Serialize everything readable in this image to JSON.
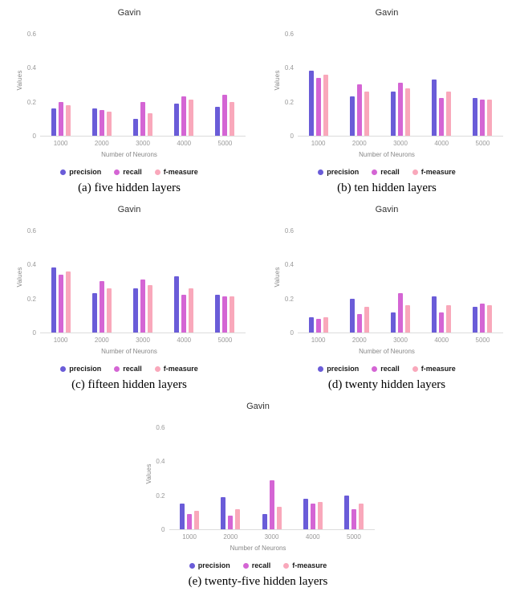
{
  "page": {
    "background": "#ffffff"
  },
  "colors": {
    "precision": "#6a5cd8",
    "recall": "#d465d4",
    "f_measure": "#f9a8bb"
  },
  "chart_data": [
    {
      "id": "a",
      "type": "bar",
      "title": "Gavin",
      "caption": "(a) five hidden layers",
      "xlabel": "Number of Neurons",
      "ylabel": "Values",
      "ylim": [
        0,
        0.6
      ],
      "yticks": [
        0,
        0.2,
        0.4,
        0.6
      ],
      "grid": false,
      "legend_position": "bottom",
      "categories": [
        "1000",
        "2000",
        "3000",
        "4000",
        "5000"
      ],
      "legend": [
        "precision",
        "recall",
        "f-measure"
      ],
      "series": [
        {
          "name": "precision",
          "color": "#6a5cd8",
          "values": [
            0.16,
            0.16,
            0.1,
            0.19,
            0.17
          ]
        },
        {
          "name": "recall",
          "color": "#d465d4",
          "values": [
            0.2,
            0.15,
            0.2,
            0.23,
            0.24
          ]
        },
        {
          "name": "f-measure",
          "color": "#f9a8bb",
          "values": [
            0.18,
            0.14,
            0.13,
            0.21,
            0.2
          ]
        }
      ]
    },
    {
      "id": "b",
      "type": "bar",
      "title": "Gavin",
      "caption": "(b) ten hidden layers",
      "xlabel": "Number of Neurons",
      "ylabel": "Values",
      "ylim": [
        0,
        0.6
      ],
      "yticks": [
        0,
        0.2,
        0.4,
        0.6
      ],
      "grid": false,
      "legend_position": "bottom",
      "categories": [
        "1000",
        "2000",
        "3000",
        "4000",
        "5000"
      ],
      "legend": [
        "precision",
        "recall",
        "f-measure"
      ],
      "series": [
        {
          "name": "precision",
          "color": "#6a5cd8",
          "values": [
            0.38,
            0.23,
            0.26,
            0.33,
            0.22
          ]
        },
        {
          "name": "recall",
          "color": "#d465d4",
          "values": [
            0.34,
            0.3,
            0.31,
            0.22,
            0.21
          ]
        },
        {
          "name": "f-measure",
          "color": "#f9a8bb",
          "values": [
            0.36,
            0.26,
            0.28,
            0.26,
            0.21
          ]
        }
      ]
    },
    {
      "id": "c",
      "type": "bar",
      "title": "Gavin",
      "caption": "(c) fifteen hidden layers",
      "xlabel": "Number of Neurons",
      "ylabel": "Values",
      "ylim": [
        0,
        0.6
      ],
      "yticks": [
        0,
        0.2,
        0.4,
        0.6
      ],
      "grid": false,
      "legend_position": "bottom",
      "categories": [
        "1000",
        "2000",
        "3000",
        "4000",
        "5000"
      ],
      "legend": [
        "precision",
        "recall",
        "f-measure"
      ],
      "series": [
        {
          "name": "precision",
          "color": "#6a5cd8",
          "values": [
            0.38,
            0.23,
            0.26,
            0.33,
            0.22
          ]
        },
        {
          "name": "recall",
          "color": "#d465d4",
          "values": [
            0.34,
            0.3,
            0.31,
            0.22,
            0.21
          ]
        },
        {
          "name": "f-measure",
          "color": "#f9a8bb",
          "values": [
            0.36,
            0.26,
            0.28,
            0.26,
            0.21
          ]
        }
      ]
    },
    {
      "id": "d",
      "type": "bar",
      "title": "Gavin",
      "caption": "(d) twenty hidden layers",
      "xlabel": "Number of Neurons",
      "ylabel": "Values",
      "ylim": [
        0,
        0.6
      ],
      "yticks": [
        0,
        0.2,
        0.4,
        0.6
      ],
      "grid": false,
      "legend_position": "bottom",
      "categories": [
        "1000",
        "2000",
        "3000",
        "4000",
        "5000"
      ],
      "legend": [
        "precision",
        "recall",
        "f-measure"
      ],
      "series": [
        {
          "name": "precision",
          "color": "#6a5cd8",
          "values": [
            0.09,
            0.2,
            0.12,
            0.21,
            0.15
          ]
        },
        {
          "name": "recall",
          "color": "#d465d4",
          "values": [
            0.08,
            0.11,
            0.23,
            0.12,
            0.17
          ]
        },
        {
          "name": "f-measure",
          "color": "#f9a8bb",
          "values": [
            0.09,
            0.15,
            0.16,
            0.16,
            0.16
          ]
        }
      ]
    },
    {
      "id": "e",
      "type": "bar",
      "title": "Gavin",
      "caption": "(e) twenty-five hidden layers",
      "xlabel": "Number of Neurons",
      "ylabel": "Values",
      "ylim": [
        0,
        0.6
      ],
      "yticks": [
        0,
        0.2,
        0.4,
        0.6
      ],
      "grid": false,
      "legend_position": "bottom",
      "categories": [
        "1000",
        "2000",
        "3000",
        "4000",
        "5000"
      ],
      "legend": [
        "precision",
        "recall",
        "f-measure"
      ],
      "series": [
        {
          "name": "precision",
          "color": "#6a5cd8",
          "values": [
            0.15,
            0.19,
            0.09,
            0.18,
            0.2
          ]
        },
        {
          "name": "recall",
          "color": "#d465d4",
          "values": [
            0.09,
            0.08,
            0.29,
            0.15,
            0.12
          ]
        },
        {
          "name": "f-measure",
          "color": "#f9a8bb",
          "values": [
            0.11,
            0.12,
            0.13,
            0.16,
            0.15
          ]
        }
      ]
    }
  ]
}
